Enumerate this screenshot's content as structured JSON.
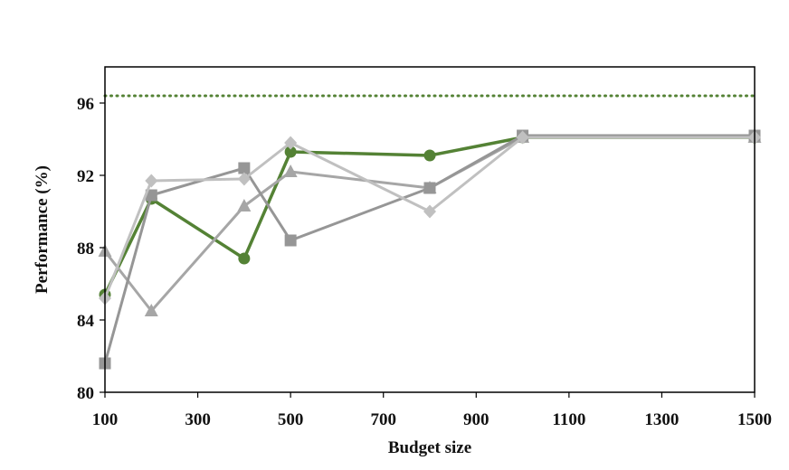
{
  "chart_data": {
    "type": "line",
    "title": "",
    "xlabel": "Budget size",
    "ylabel": "Performance (%)",
    "xlim": [
      100,
      1500
    ],
    "ylim": [
      80,
      98
    ],
    "x_ticks": [
      "100",
      "300",
      "500",
      "700",
      "900",
      "1100",
      "1300",
      "1500"
    ],
    "y_ticks": [
      "80",
      "84",
      "88",
      "92",
      "96"
    ],
    "grid": false,
    "legend": "none",
    "reference_line": {
      "y": 96.4,
      "style": "dotted",
      "color": "#548235"
    },
    "series": [
      {
        "color": "#548235",
        "marker": "circle",
        "width": 3.5,
        "points": [
          [
            100,
            85.4
          ],
          [
            200,
            90.7
          ],
          [
            400,
            87.4
          ],
          [
            500,
            93.3
          ],
          [
            800,
            93.1
          ],
          [
            1000,
            94.1
          ],
          [
            1500,
            94.1
          ]
        ]
      },
      {
        "color": "#a6a6a6",
        "marker": "triangle",
        "width": 3,
        "points": [
          [
            100,
            87.8
          ],
          [
            200,
            84.5
          ],
          [
            400,
            90.3
          ],
          [
            500,
            92.2
          ],
          [
            800,
            91.3
          ],
          [
            1000,
            94.1
          ],
          [
            1500,
            94.1
          ]
        ]
      },
      {
        "color": "#969696",
        "marker": "square",
        "width": 3,
        "points": [
          [
            100,
            81.6
          ],
          [
            200,
            90.9
          ],
          [
            400,
            92.4
          ],
          [
            500,
            88.4
          ],
          [
            800,
            91.3
          ],
          [
            1000,
            94.2
          ],
          [
            1500,
            94.2
          ]
        ]
      },
      {
        "color": "#c0c0c0",
        "marker": "diamond",
        "width": 3,
        "points": [
          [
            100,
            85.2
          ],
          [
            200,
            91.7
          ],
          [
            400,
            91.8
          ],
          [
            500,
            93.8
          ],
          [
            800,
            90.0
          ],
          [
            1000,
            94.1
          ],
          [
            1500,
            94.1
          ]
        ]
      }
    ]
  }
}
